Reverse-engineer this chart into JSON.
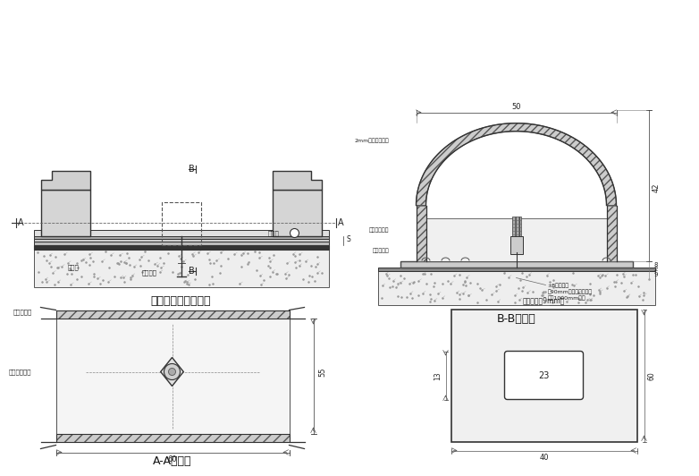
{
  "bg_color": "#ffffff",
  "line_color": "#333333",
  "hatch_color": "#555555",
  "title1": "铝合金道牙侧立面图",
  "title2": "B-B剖面图",
  "title3": "A-A剖面图",
  "label_AA_top": "铝合金道牙",
  "label_AA_left": "铝合金道水平",
  "label_BB_arch": "2mm厚铝合金道牙",
  "label_BB_water": "铝合金道水平",
  "label_BB_block": "铝合金垫块",
  "label_BB_bolt1": "±8钻管螺栓",
  "label_BB_bolt2": "长90mm打入塑胶边沿内",
  "label_BB_bolt3": "中距1000mm左右",
  "label_side_daiya": "铝垫块",
  "label_side_bolt": "冷置螺栓",
  "label_side_water": "溢水孔",
  "dim_BB_top": "50",
  "dim_BB_height": "42",
  "dim_AA_width": "60",
  "dim_AA_height": "55",
  "dim_rect_w": "23",
  "dim_rect_outer_w": "40",
  "dim_rect_outer_h": "60",
  "label_p4": "铝合金垫块9mm厚"
}
